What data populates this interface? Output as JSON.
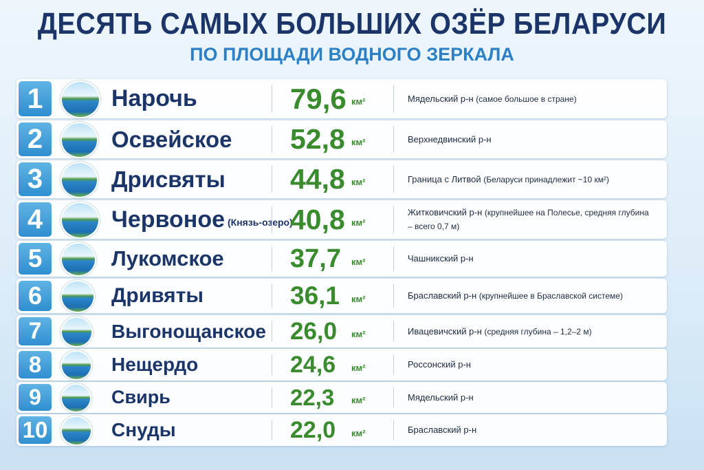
{
  "header": {
    "title": "ДЕСЯТЬ САМЫХ БОЛЬШИХ ОЗЁР БЕЛАРУСИ",
    "subtitle": "ПО ПЛОЩАДИ ВОДНОГО ЗЕРКАЛА"
  },
  "table": {
    "rows": [
      {
        "rank": "1",
        "name": "Нарочь",
        "area": "79,6",
        "unit": "км²",
        "region": "Мядельский р-н",
        "note": "(самое большое в стране)"
      },
      {
        "rank": "2",
        "name": "Освейское",
        "area": "52,8",
        "unit": "км²",
        "region": "Верхнедвинский р-н"
      },
      {
        "rank": "3",
        "name": "Дрисвяты",
        "area": "44,8",
        "unit": "км²",
        "region": "Граница с Литвой",
        "note": "(Беларуси принадлежит ~10 км²)"
      },
      {
        "rank": "4",
        "name": "Червоное",
        "name_note": "(Князь-озеро)",
        "area": "40,8",
        "unit": "км²",
        "region": "Житковичский р-н",
        "note": "(крупнейшее на Полесье, средняя глубина – всего 0,7 м)"
      },
      {
        "rank": "5",
        "name": "Лукомское",
        "area": "37,7",
        "unit": "км²",
        "region": "Чашникский р-н"
      },
      {
        "rank": "6",
        "name": "Дривяты",
        "area": "36,1",
        "unit": "км²",
        "region": "Браславский р-н",
        "note": "(крупнейшее в Браславской системе)"
      },
      {
        "rank": "7",
        "name": "Выгонощанское",
        "area": "26,0",
        "unit": "км²",
        "region": "Ивацевичский р-н",
        "note": "(средняя глубина – 1,2–2 м)"
      },
      {
        "rank": "8",
        "name": "Нещердо",
        "area": "24,6",
        "unit": "км²",
        "region": "Россонский р-н"
      },
      {
        "rank": "9",
        "name": "Свирь",
        "area": "22,3",
        "unit": "км²",
        "region": "Мядельский р-н"
      },
      {
        "rank": "10",
        "name": "Снуды",
        "area": "22,0",
        "unit": "км²",
        "region": "Браславский р-н"
      }
    ]
  }
}
